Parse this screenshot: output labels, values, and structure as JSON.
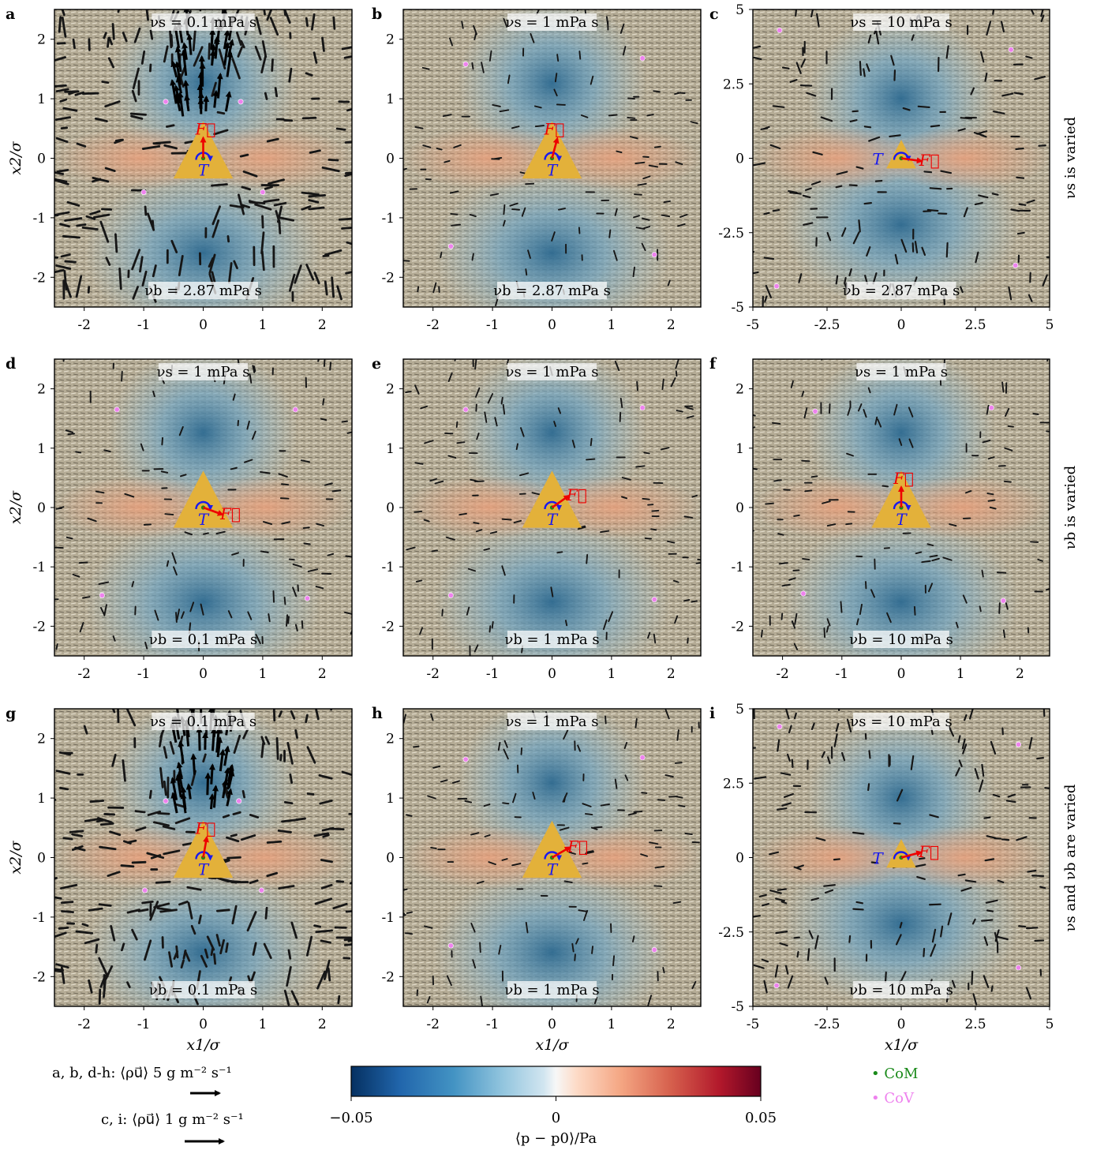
{
  "figure": {
    "row_labels": [
      "νs is varied",
      "νb is varied",
      "νs and νb are varied"
    ],
    "x_axis_label": "x1/σ",
    "y_axis_label": "x2/σ",
    "arrow_legend": [
      {
        "label": "a, b, d-h: ⟨ρu⃗⟩ 5 g m⁻² s⁻¹"
      },
      {
        "label": "c, i: ⟨ρu⃗⟩ 1 g m⁻² s⁻¹"
      }
    ],
    "colorbar": {
      "label": "⟨p − p0⟩/Pa",
      "min_label": "−0.05",
      "mid_label": "0",
      "max_label": "0.05",
      "colormap": "RdBu_r",
      "range": [
        -0.05,
        0.05
      ]
    },
    "point_legend": [
      {
        "label": "• CoM",
        "color": "#1a8a1a"
      },
      {
        "label": "• CoV",
        "color": "#ee82ee"
      }
    ],
    "colors": {
      "triangle": "#e3b13a",
      "force": "#ee0000",
      "torque": "#1a1aee",
      "com": "#1a8a1a",
      "cov": "#ee82ee",
      "streak": "#1c1c1c"
    }
  },
  "chart_data": [
    {
      "panel": "a",
      "type": "heatmap",
      "top_label": "νs = 0.1 mPa s",
      "bottom_label": "νb = 2.87 mPa s",
      "xlim": [
        -2.5,
        2.5
      ],
      "ylim": [
        -2.5,
        2.5
      ],
      "xticks": [
        "-2",
        "-1",
        "0",
        "1",
        "2"
      ],
      "yticks": [
        "2",
        "1",
        "0",
        "-1",
        "-2"
      ],
      "force_angle_deg": 90,
      "force_label_pos": "top",
      "torque_label_pos": "bottom",
      "arrow_intensity": 1.0,
      "cov_points": [
        [
          -0.63,
          0.95
        ],
        [
          0.63,
          0.95
        ],
        [
          -1.0,
          -0.57
        ],
        [
          1.0,
          -0.57
        ]
      ]
    },
    {
      "panel": "b",
      "type": "heatmap",
      "top_label": "νs = 1 mPa s",
      "bottom_label": "νb = 2.87 mPa s",
      "xlim": [
        -2.5,
        2.5
      ],
      "ylim": [
        -2.5,
        2.5
      ],
      "xticks": [
        "-2",
        "-1",
        "0",
        "1",
        "2"
      ],
      "yticks": [
        "2",
        "1",
        "0",
        "-1",
        "-2"
      ],
      "force_angle_deg": 75,
      "force_label_pos": "top",
      "torque_label_pos": "bottom",
      "arrow_intensity": 0.35,
      "cov_points": [
        [
          -1.45,
          1.58
        ],
        [
          1.52,
          1.68
        ],
        [
          -1.7,
          -1.48
        ],
        [
          1.72,
          -1.62
        ]
      ]
    },
    {
      "panel": "c",
      "type": "heatmap",
      "top_label": "νs = 10 mPa s",
      "bottom_label": "νb = 2.87 mPa s",
      "xlim": [
        -5,
        5
      ],
      "ylim": [
        -5,
        5
      ],
      "xticks": [
        "-5",
        "-2.5",
        "0",
        "2.5",
        "5"
      ],
      "yticks": [
        "5",
        "2.5",
        "0",
        "-2.5",
        "-5"
      ],
      "force_angle_deg": -8,
      "force_label_pos": "right",
      "torque_label_pos": "left",
      "arrow_intensity": 0.55,
      "cov_points": [
        [
          -4.1,
          4.3
        ],
        [
          3.7,
          3.65
        ],
        [
          -4.2,
          -4.3
        ],
        [
          3.85,
          -3.6
        ]
      ]
    },
    {
      "panel": "d",
      "type": "heatmap",
      "top_label": "νs = 1 mPa s",
      "bottom_label": "νb = 0.1 mPa s",
      "xlim": [
        -2.5,
        2.5
      ],
      "ylim": [
        -2.5,
        2.5
      ],
      "xticks": [
        "-2",
        "-1",
        "0",
        "1",
        "2"
      ],
      "yticks": [
        "2",
        "1",
        "0",
        "-1",
        "-2"
      ],
      "force_angle_deg": -20,
      "force_label_pos": "right",
      "torque_label_pos": "bottom",
      "arrow_intensity": 0.4,
      "cov_points": [
        [
          -1.45,
          1.65
        ],
        [
          1.55,
          1.65
        ],
        [
          -1.7,
          -1.48
        ],
        [
          1.75,
          -1.53
        ]
      ]
    },
    {
      "panel": "e",
      "type": "heatmap",
      "top_label": "νs = 1 mPa s",
      "bottom_label": "νb = 1 mPa s",
      "xlim": [
        -2.5,
        2.5
      ],
      "ylim": [
        -2.5,
        2.5
      ],
      "xticks": [
        "-2",
        "-1",
        "0",
        "1",
        "2"
      ],
      "yticks": [
        "2",
        "1",
        "0",
        "-1",
        "-2"
      ],
      "force_angle_deg": 35,
      "force_label_pos": "right",
      "torque_label_pos": "bottom",
      "arrow_intensity": 0.35,
      "cov_points": [
        [
          -1.45,
          1.65
        ],
        [
          1.52,
          1.68
        ],
        [
          -1.7,
          -1.48
        ],
        [
          1.72,
          -1.55
        ]
      ]
    },
    {
      "panel": "f",
      "type": "heatmap",
      "top_label": "νs = 1 mPa s",
      "bottom_label": "νb = 10 mPa s",
      "xlim": [
        -2.5,
        2.5
      ],
      "ylim": [
        -2.5,
        2.5
      ],
      "xticks": [
        "-2",
        "-1",
        "0",
        "1",
        "2"
      ],
      "yticks": [
        "2",
        "1",
        "0",
        "-1",
        "-2"
      ],
      "force_angle_deg": 90,
      "force_label_pos": "top",
      "torque_label_pos": "bottom",
      "arrow_intensity": 0.35,
      "cov_points": [
        [
          -1.45,
          1.62
        ],
        [
          1.52,
          1.68
        ],
        [
          -1.65,
          -1.45
        ],
        [
          1.72,
          -1.57
        ]
      ]
    },
    {
      "panel": "g",
      "type": "heatmap",
      "top_label": "νs = 0.1 mPa s",
      "bottom_label": "νb = 0.1 mPa s",
      "xlim": [
        -2.5,
        2.5
      ],
      "ylim": [
        -2.5,
        2.5
      ],
      "xticks": [
        "-2",
        "-1",
        "0",
        "1",
        "2"
      ],
      "yticks": [
        "2",
        "1",
        "0",
        "-1",
        "-2"
      ],
      "force_angle_deg": 80,
      "force_label_pos": "top",
      "torque_label_pos": "bottom",
      "arrow_intensity": 1.0,
      "cov_points": [
        [
          -0.63,
          0.95
        ],
        [
          0.6,
          0.95
        ],
        [
          -0.98,
          -0.55
        ],
        [
          0.98,
          -0.55
        ]
      ]
    },
    {
      "panel": "h",
      "type": "heatmap",
      "top_label": "νs = 1 mPa s",
      "bottom_label": "νb = 1 mPa s",
      "xlim": [
        -2.5,
        2.5
      ],
      "ylim": [
        -2.5,
        2.5
      ],
      "xticks": [
        "-2",
        "-1",
        "0",
        "1",
        "2"
      ],
      "yticks": [
        "2",
        "1",
        "0",
        "-1",
        "-2"
      ],
      "force_angle_deg": 30,
      "force_label_pos": "right",
      "torque_label_pos": "bottom",
      "arrow_intensity": 0.35,
      "cov_points": [
        [
          -1.45,
          1.65
        ],
        [
          1.52,
          1.68
        ],
        [
          -1.7,
          -1.48
        ],
        [
          1.72,
          -1.55
        ]
      ]
    },
    {
      "panel": "i",
      "type": "heatmap",
      "top_label": "νs = 10 mPa s",
      "bottom_label": "νb = 10 mPa s",
      "xlim": [
        -5,
        5
      ],
      "ylim": [
        -5,
        5
      ],
      "xticks": [
        "-5",
        "-2.5",
        "0",
        "2.5",
        "5"
      ],
      "yticks": [
        "5",
        "2.5",
        "0",
        "-2.5",
        "-5"
      ],
      "force_angle_deg": 15,
      "force_label_pos": "right",
      "torque_label_pos": "left",
      "arrow_intensity": 0.55,
      "cov_points": [
        [
          -4.1,
          4.4
        ],
        [
          3.95,
          3.8
        ],
        [
          -4.2,
          -4.3
        ],
        [
          3.95,
          -3.7
        ]
      ]
    }
  ]
}
